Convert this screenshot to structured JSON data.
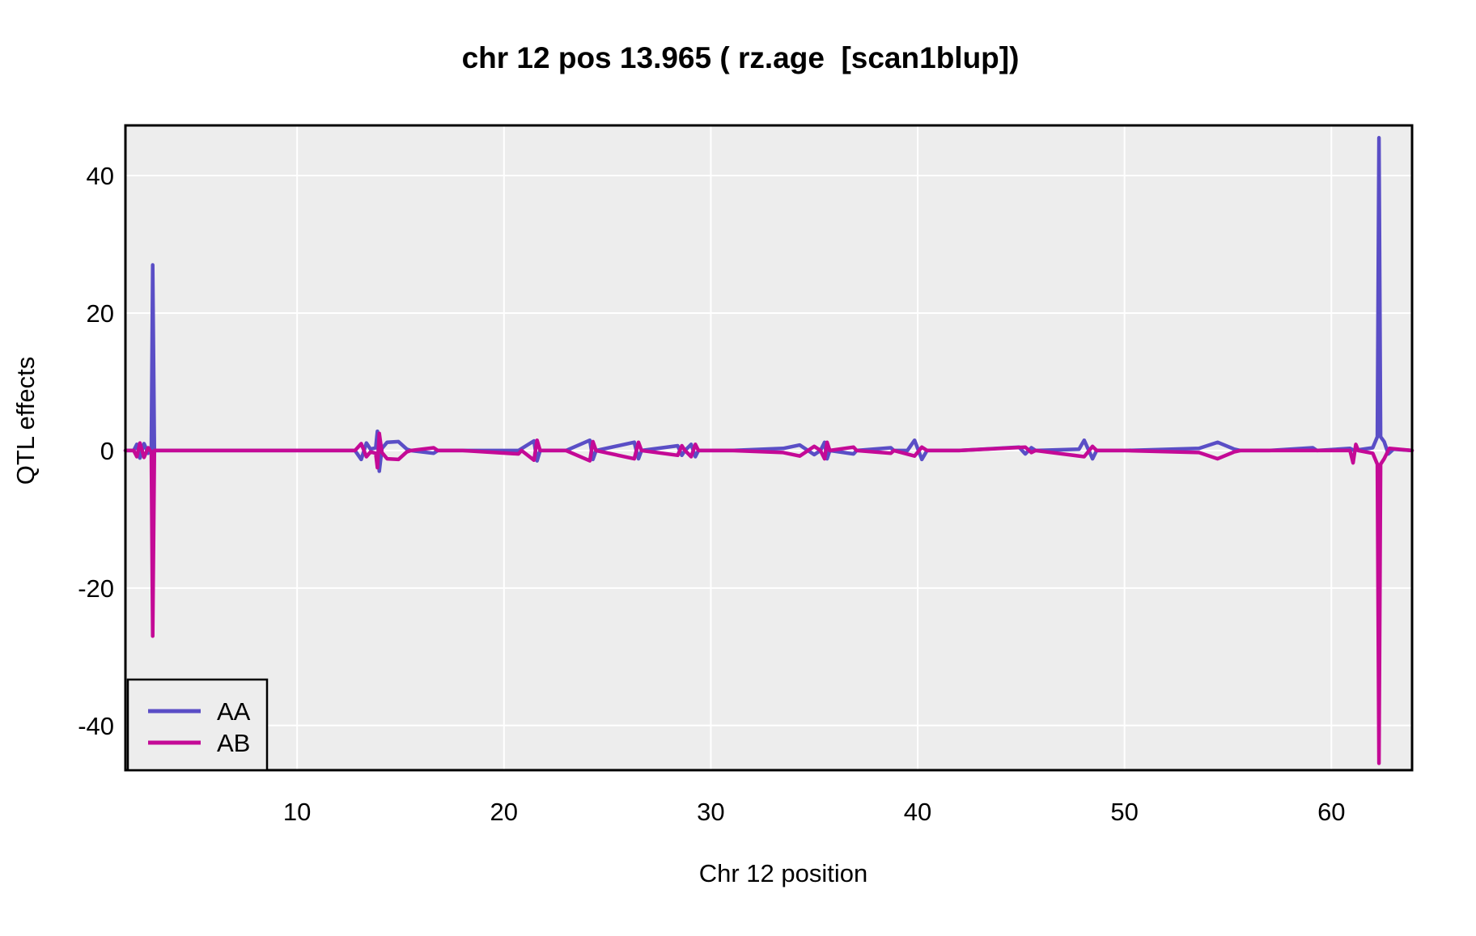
{
  "chart_data": {
    "type": "line",
    "title": "chr 12 pos 13.965 ( rz.age  [scan1blup])",
    "xlabel": "Chr 12 position",
    "ylabel": "QTL effects",
    "xlim": [
      1.7,
      63.9
    ],
    "ylim": [
      -46.5,
      47.3
    ],
    "x_ticks": [
      10,
      20,
      30,
      40,
      50,
      60
    ],
    "y_ticks": [
      -40,
      -20,
      0,
      20,
      40
    ],
    "grid": true,
    "plot_bg_color": "#ededed",
    "grid_color": "#ffffff",
    "border_color": "#000000",
    "legend": {
      "position": "bottom-left",
      "entries": [
        {
          "label": "AA",
          "color": "#5a4ec6"
        },
        {
          "label": "AB",
          "color": "#c40a96"
        }
      ]
    },
    "series": [
      {
        "name": "AA",
        "color": "#5a4ec6",
        "points": [
          [
            1.7,
            0
          ],
          [
            2.1,
            0
          ],
          [
            2.25,
            0.9
          ],
          [
            2.4,
            -1.1
          ],
          [
            2.6,
            1.0
          ],
          [
            2.8,
            -0.4
          ],
          [
            2.95,
            0.2
          ],
          [
            3.02,
            27
          ],
          [
            3.1,
            0
          ],
          [
            4,
            0
          ],
          [
            8,
            0
          ],
          [
            12.8,
            0
          ],
          [
            13.1,
            -1.3
          ],
          [
            13.35,
            1.1
          ],
          [
            13.55,
            0.2
          ],
          [
            13.8,
            0.4
          ],
          [
            13.88,
            2.8
          ],
          [
            13.97,
            -3.0
          ],
          [
            14.1,
            0.3
          ],
          [
            14.35,
            1.2
          ],
          [
            14.9,
            1.3
          ],
          [
            15.3,
            0.2
          ],
          [
            15.5,
            0
          ],
          [
            16.6,
            -0.4
          ],
          [
            16.8,
            0
          ],
          [
            18,
            0
          ],
          [
            20.7,
            0
          ],
          [
            21.45,
            1.4
          ],
          [
            21.6,
            -1.5
          ],
          [
            21.75,
            0
          ],
          [
            23,
            0
          ],
          [
            24.15,
            1.5
          ],
          [
            24.3,
            -1.3
          ],
          [
            24.45,
            0
          ],
          [
            26.3,
            1.2
          ],
          [
            26.5,
            -1.2
          ],
          [
            26.65,
            0
          ],
          [
            28.4,
            0.7
          ],
          [
            28.6,
            -0.7
          ],
          [
            28.75,
            0
          ],
          [
            29.05,
            0.9
          ],
          [
            29.25,
            -0.9
          ],
          [
            29.4,
            0
          ],
          [
            31,
            0
          ],
          [
            33.5,
            0.3
          ],
          [
            34.3,
            0.8
          ],
          [
            35.0,
            -0.6
          ],
          [
            35.3,
            0
          ],
          [
            35.5,
            1.2
          ],
          [
            35.62,
            -1.2
          ],
          [
            35.75,
            0
          ],
          [
            36.9,
            -0.5
          ],
          [
            37.05,
            0
          ],
          [
            38.7,
            0.4
          ],
          [
            38.85,
            0
          ],
          [
            39.5,
            0
          ],
          [
            39.85,
            1.5
          ],
          [
            40.2,
            -1.3
          ],
          [
            40.45,
            0
          ],
          [
            42,
            0
          ],
          [
            44.9,
            0.5
          ],
          [
            45.2,
            -0.5
          ],
          [
            45.5,
            0.4
          ],
          [
            45.7,
            0
          ],
          [
            47.8,
            0.2
          ],
          [
            48.05,
            1.5
          ],
          [
            48.45,
            -1.2
          ],
          [
            48.65,
            0
          ],
          [
            50,
            0
          ],
          [
            53.6,
            0.3
          ],
          [
            54.5,
            1.2
          ],
          [
            55.3,
            0.2
          ],
          [
            55.6,
            0
          ],
          [
            57,
            0
          ],
          [
            59.1,
            0.4
          ],
          [
            59.3,
            0
          ],
          [
            60.9,
            0.3
          ],
          [
            61.1,
            0
          ],
          [
            62.0,
            0.4
          ],
          [
            62.22,
            2.0
          ],
          [
            62.3,
            45.5
          ],
          [
            62.38,
            2.0
          ],
          [
            62.55,
            1.3
          ],
          [
            62.75,
            -0.5
          ],
          [
            63.0,
            0.2
          ],
          [
            63.9,
            0
          ]
        ]
      },
      {
        "name": "AB",
        "color": "#c40a96",
        "points": [
          [
            1.7,
            0
          ],
          [
            2.1,
            0
          ],
          [
            2.25,
            -0.9
          ],
          [
            2.4,
            1.1
          ],
          [
            2.6,
            -1.0
          ],
          [
            2.8,
            0.4
          ],
          [
            2.95,
            -0.2
          ],
          [
            3.02,
            -27
          ],
          [
            3.1,
            0
          ],
          [
            4,
            0
          ],
          [
            8,
            0
          ],
          [
            12.8,
            0
          ],
          [
            13.1,
            1.0
          ],
          [
            13.35,
            -0.9
          ],
          [
            13.55,
            -0.2
          ],
          [
            13.8,
            -0.4
          ],
          [
            13.88,
            -2.5
          ],
          [
            13.97,
            2.5
          ],
          [
            14.1,
            -0.3
          ],
          [
            14.35,
            -1.2
          ],
          [
            14.9,
            -1.3
          ],
          [
            15.3,
            -0.2
          ],
          [
            15.5,
            0
          ],
          [
            16.6,
            0.4
          ],
          [
            16.8,
            0
          ],
          [
            18,
            0
          ],
          [
            20.7,
            -0.5
          ],
          [
            20.85,
            0
          ],
          [
            21.45,
            -1.4
          ],
          [
            21.6,
            1.5
          ],
          [
            21.75,
            0
          ],
          [
            23,
            0
          ],
          [
            24.15,
            -1.5
          ],
          [
            24.3,
            1.3
          ],
          [
            24.45,
            0
          ],
          [
            26.3,
            -1.2
          ],
          [
            26.5,
            1.2
          ],
          [
            26.65,
            0
          ],
          [
            28.4,
            -0.7
          ],
          [
            28.6,
            0.7
          ],
          [
            28.75,
            0
          ],
          [
            29.05,
            -0.9
          ],
          [
            29.25,
            0.9
          ],
          [
            29.4,
            0
          ],
          [
            31,
            0
          ],
          [
            33.5,
            -0.3
          ],
          [
            34.3,
            -0.8
          ],
          [
            35.0,
            0.6
          ],
          [
            35.3,
            0
          ],
          [
            35.5,
            -1.2
          ],
          [
            35.62,
            1.2
          ],
          [
            35.75,
            0
          ],
          [
            36.9,
            0.5
          ],
          [
            37.05,
            0
          ],
          [
            38.7,
            -0.4
          ],
          [
            38.85,
            0
          ],
          [
            39.85,
            -0.8
          ],
          [
            40.2,
            0.5
          ],
          [
            40.45,
            0
          ],
          [
            42,
            0
          ],
          [
            45.2,
            0.5
          ],
          [
            45.5,
            -0.3
          ],
          [
            45.7,
            0
          ],
          [
            48.05,
            -0.9
          ],
          [
            48.45,
            0.6
          ],
          [
            48.65,
            0
          ],
          [
            50,
            0
          ],
          [
            53.6,
            -0.3
          ],
          [
            54.5,
            -1.2
          ],
          [
            55.3,
            -0.2
          ],
          [
            55.6,
            0
          ],
          [
            57,
            0
          ],
          [
            60.9,
            0
          ],
          [
            61.05,
            -1.8
          ],
          [
            61.18,
            0.9
          ],
          [
            61.3,
            0
          ],
          [
            62.0,
            -0.4
          ],
          [
            62.22,
            -2.0
          ],
          [
            62.3,
            -45.5
          ],
          [
            62.38,
            -2.0
          ],
          [
            62.55,
            -1.2
          ],
          [
            62.8,
            0.3
          ],
          [
            63.9,
            0
          ]
        ]
      }
    ]
  }
}
